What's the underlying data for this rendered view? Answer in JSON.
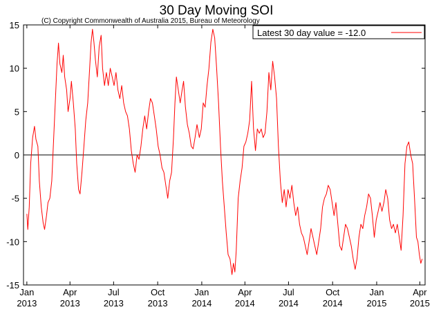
{
  "chart_data": {
    "type": "line",
    "title": "30 Day Moving SOI",
    "subtitle": "(C) Copyright Commonwealth of Australia 2015, Bureau of Meteorology",
    "xlabel": "",
    "ylabel": "",
    "ylim": [
      -15,
      15
    ],
    "xlim": [
      "2012-12-25",
      "2015-04-12"
    ],
    "grid": false,
    "legend_position": "top-right",
    "y_ticks": [
      -15,
      -10,
      -5,
      0,
      5,
      10,
      15
    ],
    "x_ticks": [
      {
        "date": "2013-01-01",
        "label_top": "Jan",
        "label_bottom": "2013"
      },
      {
        "date": "2013-04-01",
        "label_top": "Apr",
        "label_bottom": "2013"
      },
      {
        "date": "2013-07-01",
        "label_top": "Jul",
        "label_bottom": "2013"
      },
      {
        "date": "2013-10-01",
        "label_top": "Oct",
        "label_bottom": "2013"
      },
      {
        "date": "2014-01-01",
        "label_top": "Jan",
        "label_bottom": "2014"
      },
      {
        "date": "2014-04-01",
        "label_top": "Apr",
        "label_bottom": "2014"
      },
      {
        "date": "2014-07-01",
        "label_top": "Jul",
        "label_bottom": "2014"
      },
      {
        "date": "2014-10-01",
        "label_top": "Oct",
        "label_bottom": "2014"
      },
      {
        "date": "2015-01-01",
        "label_top": "Jan",
        "label_bottom": "2015"
      },
      {
        "date": "2015-04-01",
        "label_top": "Apr",
        "label_bottom": "2015"
      }
    ],
    "series": [
      {
        "name": "Latest 30 day value = -12.0",
        "color": "#ff0000",
        "points": [
          [
            "2013-01-01",
            -6.8
          ],
          [
            "2013-01-03",
            -8.6
          ],
          [
            "2013-01-06",
            -6.0
          ],
          [
            "2013-01-09",
            -1.0
          ],
          [
            "2013-01-13",
            2.0
          ],
          [
            "2013-01-17",
            3.3
          ],
          [
            "2013-01-20",
            1.8
          ],
          [
            "2013-01-24",
            1.0
          ],
          [
            "2013-01-27",
            -3.0
          ],
          [
            "2013-01-31",
            -6.0
          ],
          [
            "2013-02-04",
            -7.8
          ],
          [
            "2013-02-07",
            -8.6
          ],
          [
            "2013-02-11",
            -7.0
          ],
          [
            "2013-02-14",
            -5.5
          ],
          [
            "2013-02-18",
            -5.0
          ],
          [
            "2013-02-22",
            -3.0
          ],
          [
            "2013-02-26",
            2.0
          ],
          [
            "2013-03-02",
            7.0
          ],
          [
            "2013-03-05",
            10.5
          ],
          [
            "2013-03-08",
            12.9
          ],
          [
            "2013-03-11",
            10.5
          ],
          [
            "2013-03-15",
            9.5
          ],
          [
            "2013-03-18",
            11.5
          ],
          [
            "2013-03-21",
            9.0
          ],
          [
            "2013-03-25",
            7.5
          ],
          [
            "2013-03-28",
            5.0
          ],
          [
            "2013-04-01",
            6.5
          ],
          [
            "2013-04-04",
            8.5
          ],
          [
            "2013-04-08",
            6.0
          ],
          [
            "2013-04-12",
            3.0
          ],
          [
            "2013-04-15",
            -1.0
          ],
          [
            "2013-04-19",
            -4.0
          ],
          [
            "2013-04-22",
            -4.5
          ],
          [
            "2013-04-26",
            -2.0
          ],
          [
            "2013-04-30",
            1.0
          ],
          [
            "2013-05-04",
            4.0
          ],
          [
            "2013-05-08",
            6.0
          ],
          [
            "2013-05-12",
            10.0
          ],
          [
            "2013-05-15",
            13.0
          ],
          [
            "2013-05-18",
            14.5
          ],
          [
            "2013-05-21",
            13.0
          ],
          [
            "2013-05-24",
            11.0
          ],
          [
            "2013-05-28",
            9.0
          ],
          [
            "2013-06-01",
            12.5
          ],
          [
            "2013-06-05",
            13.8
          ],
          [
            "2013-06-08",
            10.0
          ],
          [
            "2013-06-12",
            8.0
          ],
          [
            "2013-06-16",
            9.5
          ],
          [
            "2013-06-20",
            8.0
          ],
          [
            "2013-06-24",
            10.0
          ],
          [
            "2013-06-28",
            9.0
          ],
          [
            "2013-07-02",
            8.0
          ],
          [
            "2013-07-06",
            9.5
          ],
          [
            "2013-07-10",
            7.5
          ],
          [
            "2013-07-14",
            6.5
          ],
          [
            "2013-07-18",
            8.0
          ],
          [
            "2013-07-22",
            6.0
          ],
          [
            "2013-07-26",
            5.0
          ],
          [
            "2013-07-30",
            4.5
          ],
          [
            "2013-08-03",
            3.0
          ],
          [
            "2013-08-07",
            0.5
          ],
          [
            "2013-08-11",
            -1.0
          ],
          [
            "2013-08-15",
            -2.0
          ],
          [
            "2013-08-19",
            0.0
          ],
          [
            "2013-08-23",
            -0.5
          ],
          [
            "2013-08-27",
            1.0
          ],
          [
            "2013-08-31",
            3.0
          ],
          [
            "2013-09-04",
            4.5
          ],
          [
            "2013-09-08",
            3.0
          ],
          [
            "2013-09-12",
            5.0
          ],
          [
            "2013-09-16",
            6.5
          ],
          [
            "2013-09-20",
            6.0
          ],
          [
            "2013-09-24",
            4.5
          ],
          [
            "2013-09-28",
            3.0
          ],
          [
            "2013-10-02",
            1.0
          ],
          [
            "2013-10-06",
            0.0
          ],
          [
            "2013-10-10",
            -1.5
          ],
          [
            "2013-10-14",
            -2.0
          ],
          [
            "2013-10-18",
            -3.5
          ],
          [
            "2013-10-22",
            -5.0
          ],
          [
            "2013-10-26",
            -3.0
          ],
          [
            "2013-10-30",
            -2.0
          ],
          [
            "2013-11-03",
            2.0
          ],
          [
            "2013-11-06",
            6.0
          ],
          [
            "2013-11-09",
            9.0
          ],
          [
            "2013-11-13",
            7.5
          ],
          [
            "2013-11-17",
            6.0
          ],
          [
            "2013-11-21",
            7.5
          ],
          [
            "2013-11-24",
            8.5
          ],
          [
            "2013-11-28",
            5.5
          ],
          [
            "2013-12-02",
            3.5
          ],
          [
            "2013-12-06",
            2.5
          ],
          [
            "2013-12-10",
            1.0
          ],
          [
            "2013-12-14",
            0.7
          ],
          [
            "2013-12-18",
            2.0
          ],
          [
            "2013-12-22",
            3.5
          ],
          [
            "2013-12-27",
            2.0
          ],
          [
            "2013-12-31",
            3.0
          ],
          [
            "2014-01-04",
            6.0
          ],
          [
            "2014-01-08",
            5.5
          ],
          [
            "2014-01-12",
            8.0
          ],
          [
            "2014-01-16",
            10.0
          ],
          [
            "2014-01-20",
            13.0
          ],
          [
            "2014-01-24",
            14.5
          ],
          [
            "2014-01-28",
            13.5
          ],
          [
            "2014-02-01",
            10.0
          ],
          [
            "2014-02-05",
            6.0
          ],
          [
            "2014-02-09",
            1.0
          ],
          [
            "2014-02-13",
            -3.0
          ],
          [
            "2014-02-17",
            -6.0
          ],
          [
            "2014-02-21",
            -9.0
          ],
          [
            "2014-02-25",
            -11.5
          ],
          [
            "2014-03-01",
            -12.0
          ],
          [
            "2014-03-05",
            -13.8
          ],
          [
            "2014-03-08",
            -12.5
          ],
          [
            "2014-03-11",
            -13.5
          ],
          [
            "2014-03-14",
            -11.0
          ],
          [
            "2014-03-18",
            -5.0
          ],
          [
            "2014-03-22",
            -3.0
          ],
          [
            "2014-03-26",
            -1.5
          ],
          [
            "2014-03-30",
            1.0
          ],
          [
            "2014-04-03",
            1.5
          ],
          [
            "2014-04-07",
            2.5
          ],
          [
            "2014-04-11",
            4.0
          ],
          [
            "2014-04-15",
            8.5
          ],
          [
            "2014-04-19",
            3.0
          ],
          [
            "2014-04-23",
            0.5
          ],
          [
            "2014-04-27",
            3.0
          ],
          [
            "2014-05-01",
            2.5
          ],
          [
            "2014-05-05",
            3.0
          ],
          [
            "2014-05-09",
            2.0
          ],
          [
            "2014-05-13",
            2.5
          ],
          [
            "2014-05-17",
            5.0
          ],
          [
            "2014-05-21",
            9.5
          ],
          [
            "2014-05-25",
            7.5
          ],
          [
            "2014-05-29",
            10.8
          ],
          [
            "2014-06-02",
            9.0
          ],
          [
            "2014-06-06",
            6.5
          ],
          [
            "2014-06-10",
            1.0
          ],
          [
            "2014-06-14",
            -3.0
          ],
          [
            "2014-06-18",
            -5.5
          ],
          [
            "2014-06-22",
            -4.0
          ],
          [
            "2014-06-26",
            -6.0
          ],
          [
            "2014-06-30",
            -4.0
          ],
          [
            "2014-07-04",
            -5.0
          ],
          [
            "2014-07-08",
            -3.5
          ],
          [
            "2014-07-12",
            -5.5
          ],
          [
            "2014-07-16",
            -7.0
          ],
          [
            "2014-07-20",
            -6.0
          ],
          [
            "2014-07-24",
            -8.0
          ],
          [
            "2014-07-28",
            -9.0
          ],
          [
            "2014-08-01",
            -9.5
          ],
          [
            "2014-08-05",
            -10.5
          ],
          [
            "2014-08-09",
            -11.5
          ],
          [
            "2014-08-13",
            -10.0
          ],
          [
            "2014-08-17",
            -8.5
          ],
          [
            "2014-08-21",
            -9.5
          ],
          [
            "2014-08-25",
            -10.5
          ],
          [
            "2014-08-29",
            -11.5
          ],
          [
            "2014-09-02",
            -10.0
          ],
          [
            "2014-09-06",
            -8.5
          ],
          [
            "2014-09-10",
            -6.0
          ],
          [
            "2014-09-14",
            -5.0
          ],
          [
            "2014-09-18",
            -4.5
          ],
          [
            "2014-09-22",
            -3.5
          ],
          [
            "2014-09-26",
            -4.0
          ],
          [
            "2014-09-30",
            -5.5
          ],
          [
            "2014-10-04",
            -7.0
          ],
          [
            "2014-10-08",
            -5.5
          ],
          [
            "2014-10-12",
            -8.0
          ],
          [
            "2014-10-16",
            -10.5
          ],
          [
            "2014-10-20",
            -11.0
          ],
          [
            "2014-10-24",
            -9.5
          ],
          [
            "2014-10-28",
            -8.0
          ],
          [
            "2014-11-01",
            -8.5
          ],
          [
            "2014-11-05",
            -9.5
          ],
          [
            "2014-11-09",
            -10.5
          ],
          [
            "2014-11-13",
            -12.0
          ],
          [
            "2014-11-17",
            -13.2
          ],
          [
            "2014-11-21",
            -12.0
          ],
          [
            "2014-11-25",
            -9.5
          ],
          [
            "2014-11-29",
            -8.0
          ],
          [
            "2014-12-03",
            -8.5
          ],
          [
            "2014-12-07",
            -7.0
          ],
          [
            "2014-12-11",
            -6.0
          ],
          [
            "2014-12-15",
            -4.5
          ],
          [
            "2014-12-19",
            -5.0
          ],
          [
            "2014-12-23",
            -7.0
          ],
          [
            "2014-12-27",
            -9.5
          ],
          [
            "2014-12-31",
            -7.5
          ],
          [
            "2015-01-04",
            -6.5
          ],
          [
            "2015-01-08",
            -5.5
          ],
          [
            "2015-01-12",
            -6.5
          ],
          [
            "2015-01-16",
            -5.5
          ],
          [
            "2015-01-20",
            -4.0
          ],
          [
            "2015-01-24",
            -5.0
          ],
          [
            "2015-01-28",
            -7.5
          ],
          [
            "2015-02-01",
            -8.5
          ],
          [
            "2015-02-05",
            -8.0
          ],
          [
            "2015-02-09",
            -9.0
          ],
          [
            "2015-02-13",
            -8.0
          ],
          [
            "2015-02-17",
            -9.5
          ],
          [
            "2015-02-21",
            -11.0
          ],
          [
            "2015-02-25",
            -7.0
          ],
          [
            "2015-03-01",
            -1.0
          ],
          [
            "2015-03-05",
            1.0
          ],
          [
            "2015-03-09",
            1.5
          ],
          [
            "2015-03-13",
            0.0
          ],
          [
            "2015-03-17",
            -1.0
          ],
          [
            "2015-03-21",
            -5.0
          ],
          [
            "2015-03-25",
            -9.5
          ],
          [
            "2015-03-28",
            -10.0
          ],
          [
            "2015-03-31",
            -11.5
          ],
          [
            "2015-04-03",
            -12.5
          ],
          [
            "2015-04-06",
            -12.0
          ]
        ]
      }
    ]
  }
}
